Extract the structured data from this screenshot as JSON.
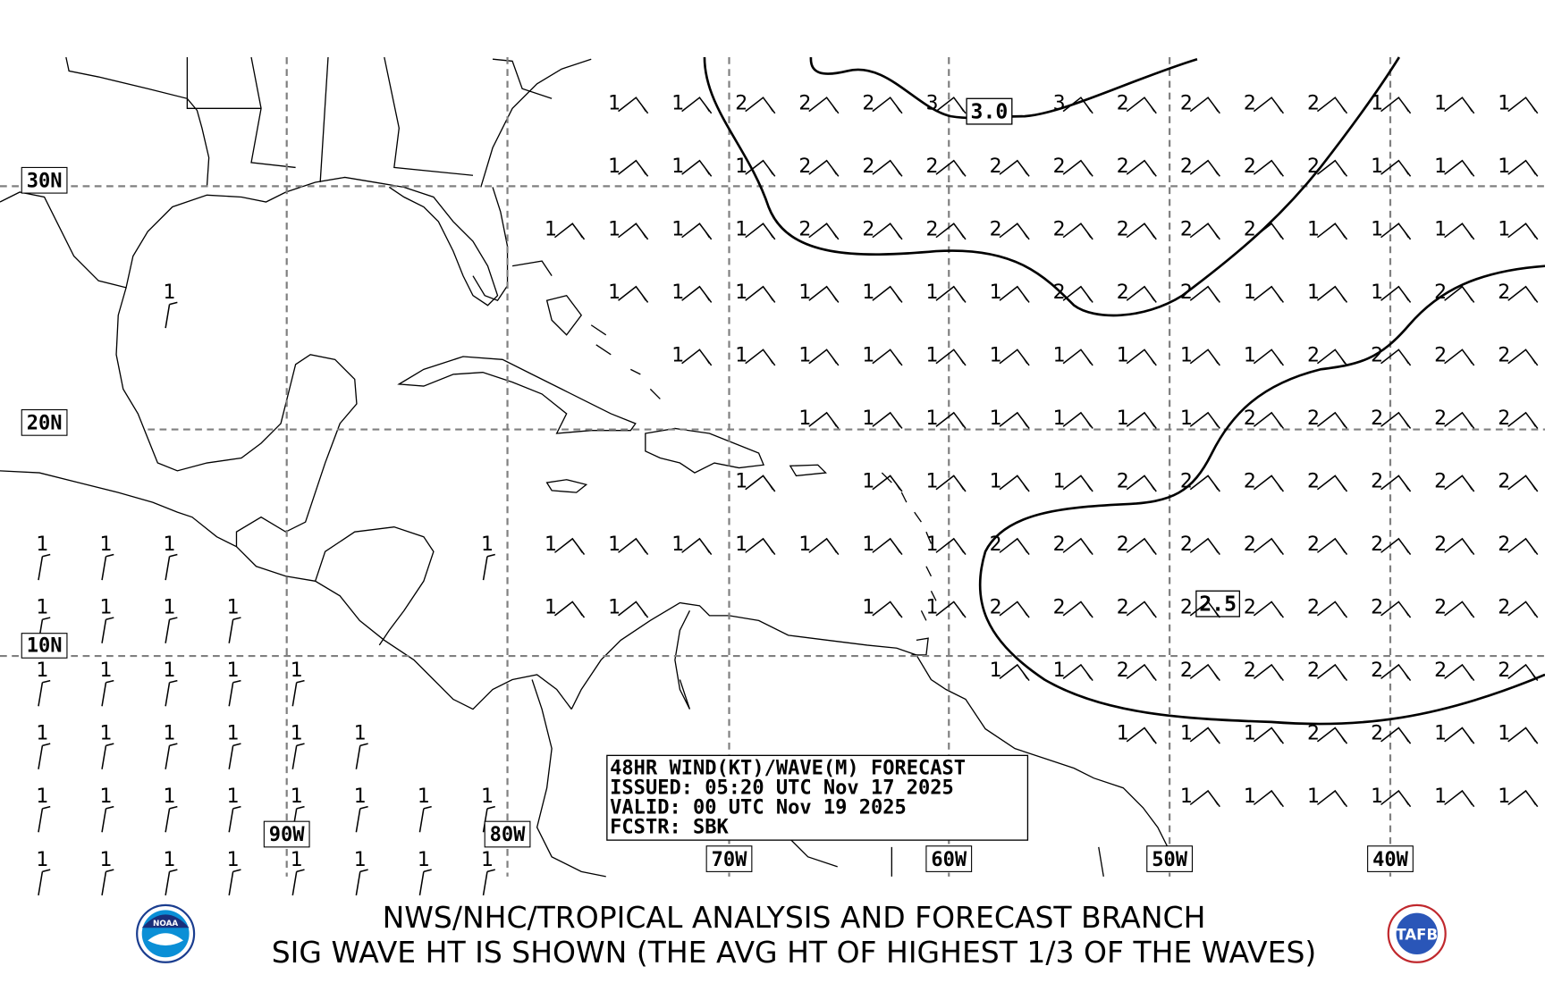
{
  "info_box": {
    "line1": "48HR WIND(KT)/WAVE(M) FORECAST",
    "line2": "ISSUED: 05:20 UTC Nov 17 2025",
    "line3": "VALID: 00 UTC Nov 19 2025",
    "line4": "FCSTR: SBK"
  },
  "lat_labels": [
    "30N",
    "20N",
    "10N"
  ],
  "lon_labels": [
    "90W",
    "80W",
    "70W",
    "60W",
    "50W",
    "40W"
  ],
  "contour_labels": [
    "3.0",
    "2.5"
  ],
  "footer": {
    "line1": "NWS/NHC/TROPICAL ANALYSIS AND FORECAST BRANCH",
    "line2": "SIG WAVE HT IS SHOWN (THE AVG HT OF HIGHEST 1/3 OF THE WAVES)"
  },
  "logos": {
    "left": "NOAA",
    "right": "TAFB"
  },
  "colors": {
    "grid": "#808080",
    "land_outline": "#000000",
    "contour": "#000000"
  },
  "wave_height_grid": [
    [
      null,
      null,
      null,
      null,
      null,
      null,
      null,
      null,
      null,
      1,
      1,
      2,
      2,
      2,
      3,
      null,
      3,
      2,
      2,
      2,
      2,
      1,
      1,
      1
    ],
    [
      null,
      null,
      null,
      null,
      null,
      null,
      null,
      null,
      null,
      1,
      1,
      1,
      2,
      2,
      2,
      2,
      2,
      2,
      2,
      2,
      2,
      1,
      1,
      1
    ],
    [
      null,
      null,
      null,
      null,
      null,
      null,
      null,
      null,
      1,
      1,
      1,
      1,
      2,
      2,
      2,
      2,
      2,
      2,
      2,
      2,
      1,
      1,
      1,
      1
    ],
    [
      null,
      null,
      1,
      null,
      null,
      null,
      null,
      null,
      null,
      1,
      1,
      1,
      1,
      1,
      1,
      1,
      2,
      2,
      2,
      1,
      1,
      1,
      2,
      2
    ],
    [
      null,
      null,
      null,
      null,
      null,
      null,
      null,
      null,
      null,
      null,
      1,
      1,
      1,
      1,
      1,
      1,
      1,
      1,
      1,
      1,
      2,
      2,
      2,
      2
    ],
    [
      null,
      null,
      null,
      null,
      null,
      null,
      null,
      null,
      null,
      null,
      null,
      null,
      1,
      1,
      1,
      1,
      1,
      1,
      1,
      2,
      2,
      2,
      2,
      2
    ],
    [
      null,
      null,
      null,
      null,
      null,
      null,
      null,
      null,
      null,
      null,
      null,
      1,
      null,
      1,
      1,
      1,
      1,
      2,
      2,
      2,
      2,
      2,
      2,
      2
    ],
    [
      1,
      1,
      1,
      null,
      null,
      null,
      null,
      1,
      1,
      1,
      1,
      1,
      1,
      1,
      1,
      2,
      2,
      2,
      2,
      2,
      2,
      2,
      2,
      2
    ],
    [
      1,
      1,
      1,
      1,
      null,
      null,
      null,
      null,
      1,
      1,
      null,
      null,
      null,
      1,
      1,
      2,
      2,
      2,
      2,
      2,
      2,
      2,
      2,
      2
    ],
    [
      1,
      1,
      1,
      1,
      1,
      null,
      null,
      null,
      null,
      null,
      null,
      null,
      null,
      null,
      null,
      1,
      1,
      2,
      2,
      2,
      2,
      2,
      2,
      2
    ],
    [
      1,
      1,
      1,
      1,
      1,
      1,
      null,
      null,
      null,
      null,
      null,
      null,
      null,
      null,
      null,
      null,
      null,
      1,
      1,
      1,
      2,
      2,
      1,
      1
    ],
    [
      1,
      1,
      1,
      1,
      1,
      1,
      1,
      1,
      null,
      null,
      null,
      null,
      null,
      null,
      null,
      null,
      null,
      null,
      1,
      1,
      1,
      1,
      1,
      1
    ],
    [
      1,
      1,
      1,
      1,
      1,
      1,
      1,
      1,
      null,
      null,
      null,
      null,
      null,
      null,
      null,
      null,
      null,
      null,
      null,
      null,
      null,
      null,
      null,
      null
    ]
  ]
}
